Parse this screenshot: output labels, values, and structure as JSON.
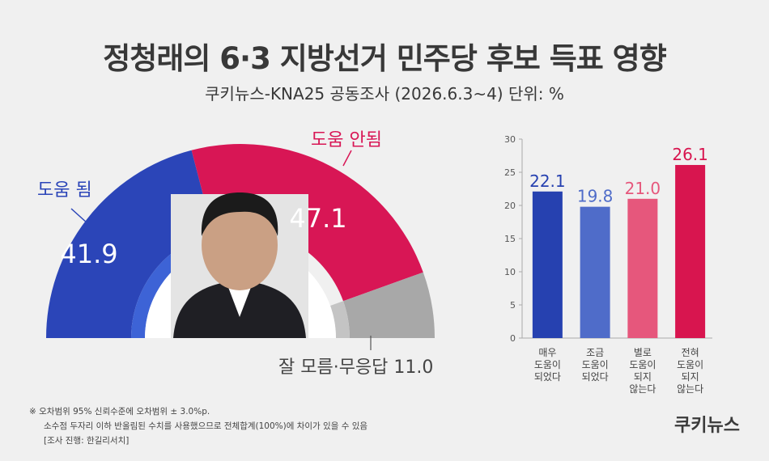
{
  "header": {
    "title": "정청래의 6·3 지방선거 민주당 후보 득표 영향",
    "subtitle": "쿠키뉴스-KNA25 공동조사 (2026.6.3~4) 단위: %"
  },
  "colors": {
    "blue": "#2b45b8",
    "blue_inner": "#3d63d6",
    "red": "#d81655",
    "gray": "#a8a8a8",
    "gray_inner": "#c4c4c4",
    "bar_blue_dark": "#2641b0",
    "bar_blue_light": "#4f6cc9",
    "bar_pink": "#e6577c",
    "bar_red": "#d8154f"
  },
  "chart_data": [
    {
      "type": "pie",
      "variant": "half-donut",
      "slices": [
        {
          "label": "도움 됨",
          "value": 41.9,
          "value_label": "41.9",
          "color": "#2b45b8"
        },
        {
          "label": "도움 안됨",
          "value": 47.1,
          "value_label": "47.1",
          "color": "#d81655"
        },
        {
          "label": "잘 모름·무응답",
          "value": 11.0,
          "value_label": "11.0",
          "color": "#a8a8a8"
        }
      ]
    },
    {
      "type": "bar",
      "categories": [
        [
          "매우",
          "도움이",
          "되었다"
        ],
        [
          "조금",
          "도움이",
          "되었다"
        ],
        [
          "별로",
          "도움이",
          "되지",
          "않는다"
        ],
        [
          "전혀",
          "도움이",
          "되지",
          "않는다"
        ]
      ],
      "values": [
        22.1,
        19.8,
        21.0,
        26.1
      ],
      "value_labels": [
        "22.1",
        "19.8",
        "21.0",
        "26.1"
      ],
      "colors": [
        "#2641b0",
        "#4f6cc9",
        "#e6577c",
        "#d8154f"
      ],
      "label_colors": [
        "#2641b0",
        "#4f6cc9",
        "#e6577c",
        "#d8154f"
      ],
      "ylim": [
        0,
        30
      ],
      "yticks": [
        "0",
        "5",
        "10",
        "15",
        "20",
        "25",
        "30"
      ],
      "grid": false
    }
  ],
  "footnote": {
    "line1": "※ 오차범위 95% 신뢰수준에 오차범위 ± 3.0%p.",
    "line2": "소수점 두자리 이하 반올림된 수치를 사용했으므로 전체합계(100%)에 차이가 있을 수 있음",
    "line3": "[조사 진행: 한길리서치]"
  },
  "brand": "쿠키뉴스"
}
